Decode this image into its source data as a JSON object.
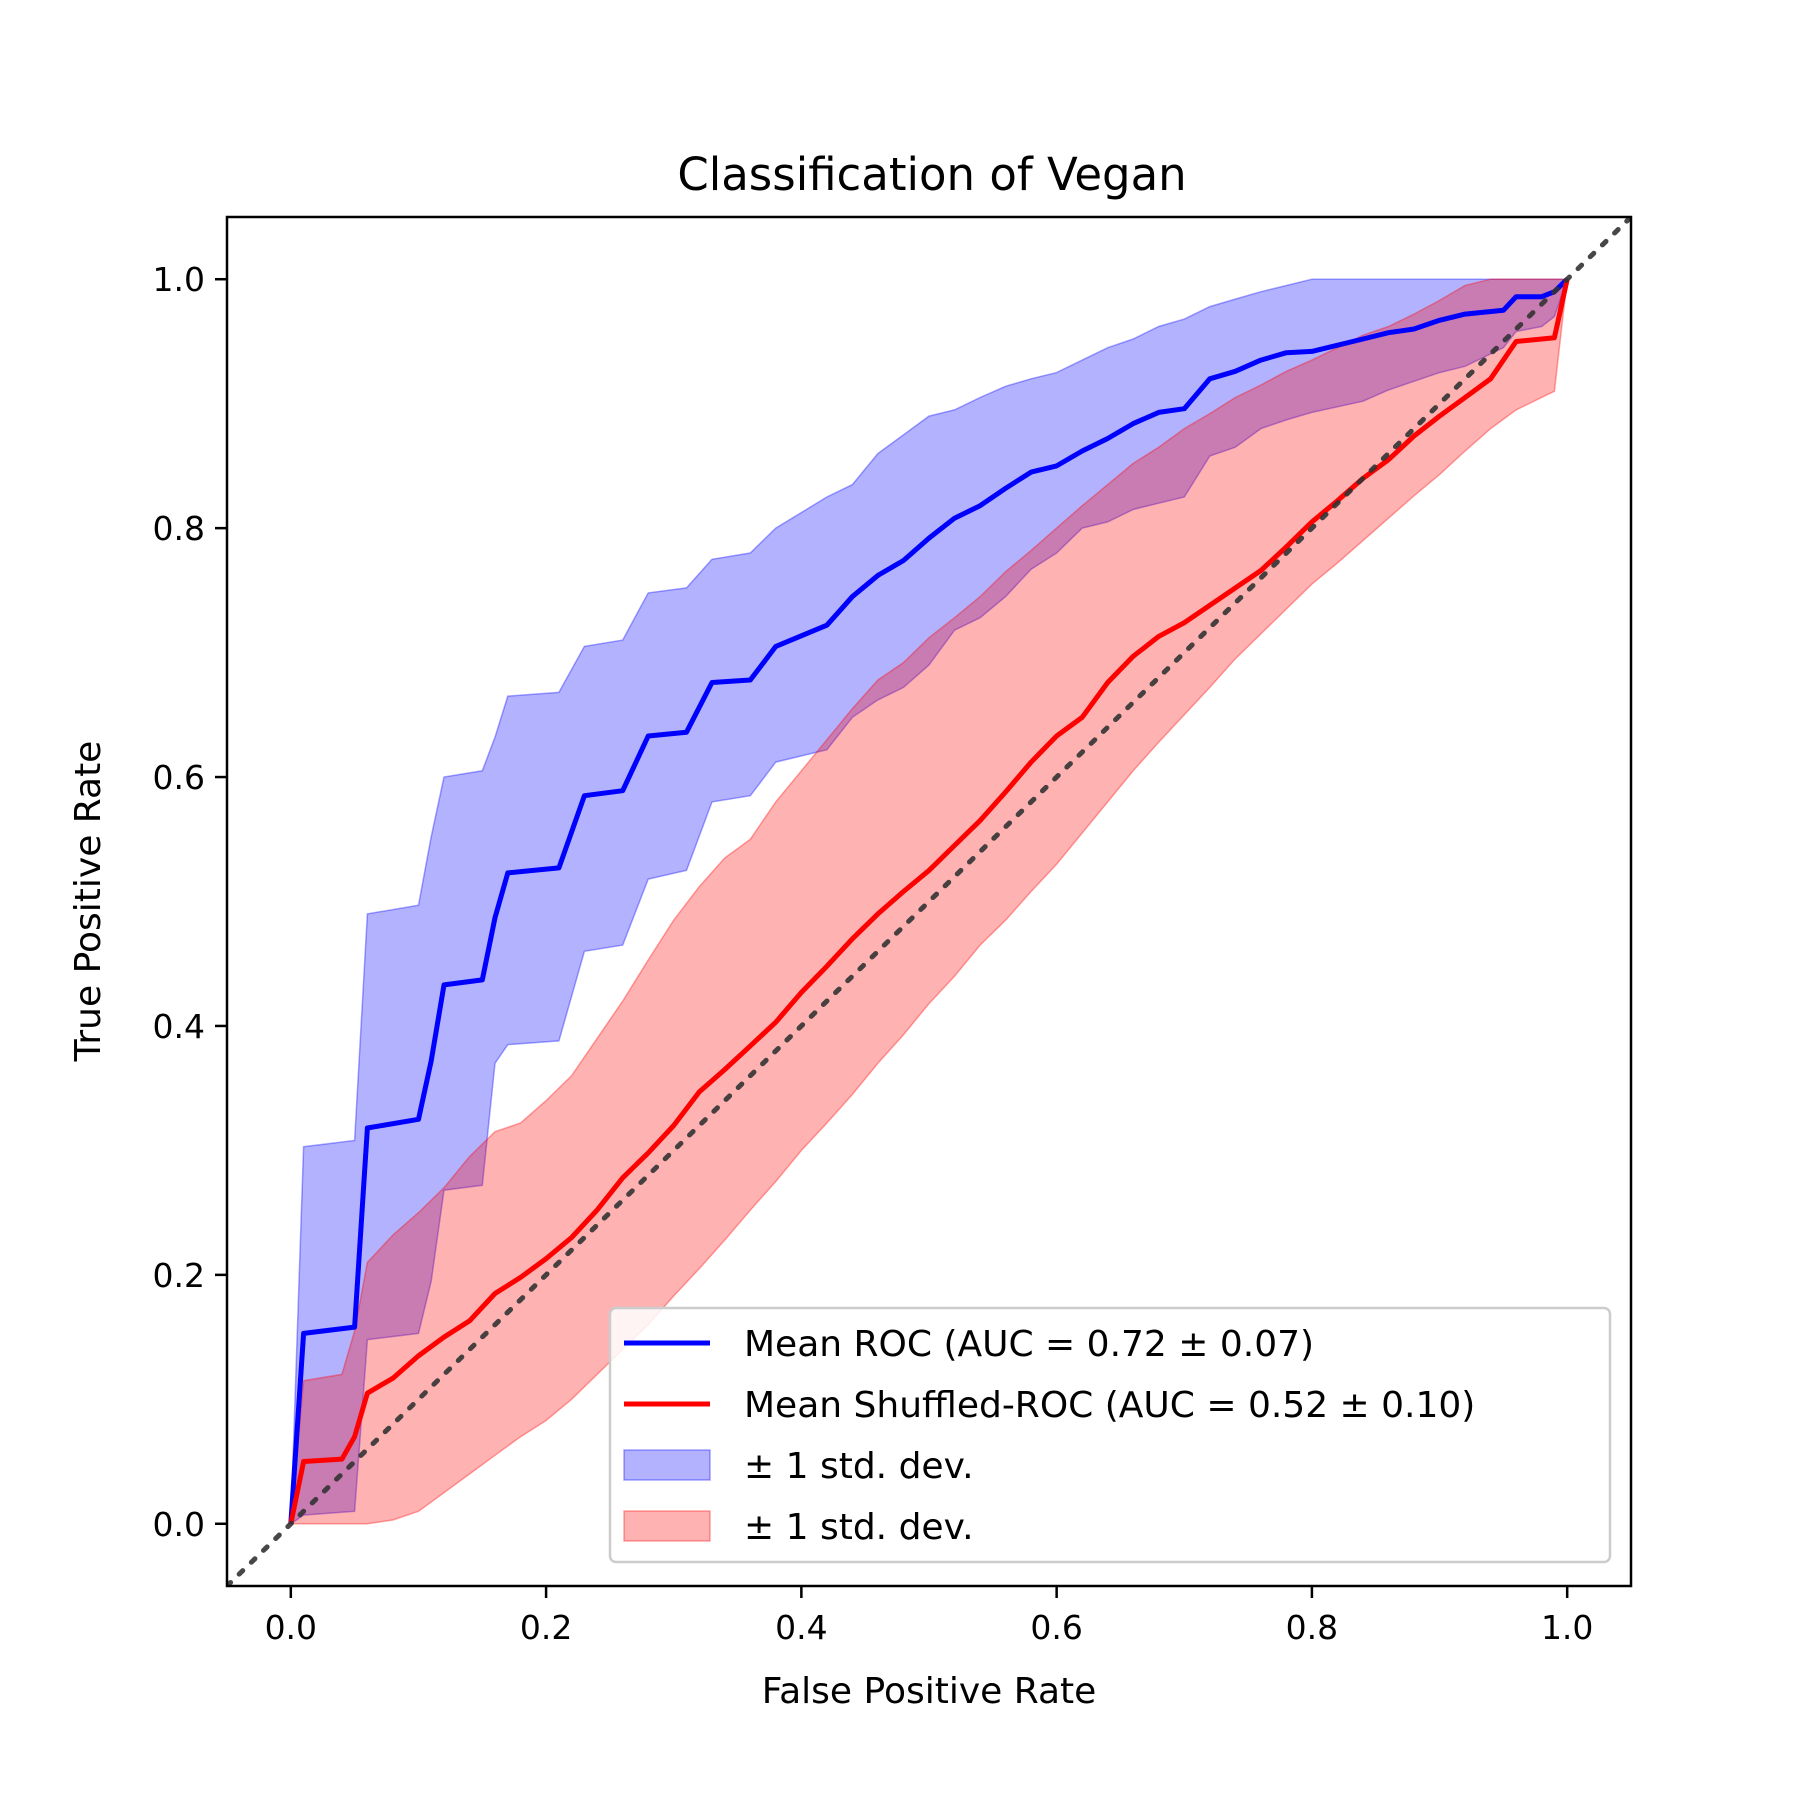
{
  "chart_data": {
    "type": "line",
    "title": "Classification of Vegan",
    "xlabel": "False Positive Rate",
    "ylabel": "True Positive Rate",
    "xlim": [
      -0.05,
      1.05
    ],
    "ylim": [
      -0.05,
      1.05
    ],
    "grid": false,
    "legend_position": "lower-right",
    "xticks": [
      "0.0",
      "0.2",
      "0.4",
      "0.6",
      "0.8",
      "1.0"
    ],
    "yticks": [
      "0.0",
      "0.2",
      "0.4",
      "0.6",
      "0.8",
      "1.0"
    ],
    "series": [
      {
        "name": "Mean ROC (AUC = 0.72 ± 0.07)",
        "color": "#0000ff",
        "x": [
          0.0,
          0.01,
          0.05,
          0.06,
          0.1,
          0.11,
          0.12,
          0.15,
          0.16,
          0.17,
          0.21,
          0.23,
          0.26,
          0.28,
          0.31,
          0.33,
          0.36,
          0.38,
          0.42,
          0.44,
          0.46,
          0.48,
          0.5,
          0.52,
          0.54,
          0.56,
          0.58,
          0.6,
          0.62,
          0.64,
          0.66,
          0.68,
          0.7,
          0.72,
          0.74,
          0.76,
          0.78,
          0.8,
          0.84,
          0.86,
          0.88,
          0.9,
          0.92,
          0.95,
          0.96,
          0.98,
          0.99,
          1.0
        ],
        "y": [
          0.0,
          0.153,
          0.158,
          0.318,
          0.325,
          0.372,
          0.433,
          0.437,
          0.487,
          0.523,
          0.527,
          0.585,
          0.589,
          0.633,
          0.636,
          0.676,
          0.678,
          0.705,
          0.722,
          0.745,
          0.762,
          0.774,
          0.792,
          0.808,
          0.818,
          0.832,
          0.845,
          0.85,
          0.862,
          0.872,
          0.884,
          0.893,
          0.896,
          0.92,
          0.926,
          0.935,
          0.941,
          0.942,
          0.952,
          0.957,
          0.96,
          0.967,
          0.972,
          0.975,
          0.986,
          0.986,
          0.99,
          1.0
        ],
        "y_upper": [
          0.0,
          0.303,
          0.308,
          0.49,
          0.497,
          0.552,
          0.6,
          0.605,
          0.632,
          0.665,
          0.668,
          0.705,
          0.71,
          0.748,
          0.752,
          0.775,
          0.78,
          0.8,
          0.825,
          0.835,
          0.86,
          0.875,
          0.89,
          0.895,
          0.905,
          0.914,
          0.92,
          0.925,
          0.935,
          0.945,
          0.952,
          0.962,
          0.968,
          0.978,
          0.984,
          0.99,
          0.995,
          1.0,
          1.0,
          1.0,
          1.0,
          1.0,
          1.0,
          1.0,
          1.0,
          1.0,
          1.0,
          1.0
        ],
        "y_lower": [
          0.0,
          0.007,
          0.01,
          0.148,
          0.153,
          0.195,
          0.268,
          0.272,
          0.37,
          0.385,
          0.388,
          0.46,
          0.465,
          0.518,
          0.525,
          0.58,
          0.585,
          0.612,
          0.622,
          0.648,
          0.662,
          0.672,
          0.69,
          0.718,
          0.728,
          0.745,
          0.767,
          0.78,
          0.8,
          0.805,
          0.815,
          0.82,
          0.825,
          0.858,
          0.865,
          0.88,
          0.887,
          0.893,
          0.902,
          0.911,
          0.918,
          0.925,
          0.93,
          0.945,
          0.958,
          0.962,
          0.97,
          1.0
        ]
      },
      {
        "name": "Mean Shuffled-ROC (AUC = 0.52 ± 0.10)",
        "color": "#ff0000",
        "x": [
          0.0,
          0.01,
          0.04,
          0.05,
          0.06,
          0.08,
          0.1,
          0.12,
          0.14,
          0.16,
          0.18,
          0.2,
          0.22,
          0.24,
          0.26,
          0.28,
          0.3,
          0.32,
          0.34,
          0.36,
          0.38,
          0.4,
          0.42,
          0.44,
          0.46,
          0.48,
          0.5,
          0.52,
          0.54,
          0.56,
          0.58,
          0.6,
          0.62,
          0.64,
          0.66,
          0.68,
          0.7,
          0.72,
          0.74,
          0.76,
          0.78,
          0.8,
          0.82,
          0.84,
          0.86,
          0.88,
          0.9,
          0.92,
          0.94,
          0.96,
          0.99,
          1.0
        ],
        "y": [
          0.0,
          0.05,
          0.052,
          0.07,
          0.105,
          0.117,
          0.135,
          0.15,
          0.163,
          0.185,
          0.198,
          0.213,
          0.23,
          0.252,
          0.278,
          0.298,
          0.32,
          0.347,
          0.365,
          0.384,
          0.403,
          0.427,
          0.448,
          0.47,
          0.49,
          0.508,
          0.525,
          0.545,
          0.565,
          0.588,
          0.612,
          0.633,
          0.648,
          0.676,
          0.697,
          0.713,
          0.724,
          0.738,
          0.752,
          0.766,
          0.785,
          0.805,
          0.822,
          0.84,
          0.855,
          0.874,
          0.89,
          0.905,
          0.92,
          0.95,
          0.953,
          1.0
        ],
        "y_upper": [
          0.0,
          0.115,
          0.12,
          0.155,
          0.21,
          0.232,
          0.25,
          0.27,
          0.295,
          0.315,
          0.322,
          0.34,
          0.36,
          0.39,
          0.42,
          0.453,
          0.485,
          0.512,
          0.535,
          0.55,
          0.58,
          0.605,
          0.63,
          0.655,
          0.678,
          0.692,
          0.712,
          0.728,
          0.745,
          0.765,
          0.782,
          0.8,
          0.818,
          0.835,
          0.852,
          0.865,
          0.88,
          0.892,
          0.905,
          0.915,
          0.926,
          0.935,
          0.945,
          0.955,
          0.962,
          0.972,
          0.983,
          0.995,
          1.0,
          1.0,
          1.0,
          1.0
        ],
        "y_lower": [
          0.0,
          0.0,
          0.0,
          0.0,
          0.0,
          0.003,
          0.01,
          0.025,
          0.04,
          0.055,
          0.07,
          0.083,
          0.1,
          0.12,
          0.14,
          0.16,
          0.183,
          0.205,
          0.228,
          0.252,
          0.275,
          0.3,
          0.322,
          0.345,
          0.37,
          0.393,
          0.418,
          0.44,
          0.465,
          0.485,
          0.508,
          0.53,
          0.555,
          0.58,
          0.605,
          0.628,
          0.65,
          0.672,
          0.695,
          0.715,
          0.735,
          0.755,
          0.772,
          0.79,
          0.808,
          0.826,
          0.843,
          0.862,
          0.88,
          0.895,
          0.91,
          1.0
        ]
      },
      {
        "name": "chance",
        "color": "#333333",
        "style": "dotted",
        "x": [
          -0.05,
          1.05
        ],
        "y": [
          -0.05,
          1.05
        ]
      }
    ],
    "legend": [
      {
        "label": "Mean ROC (AUC = 0.72 ± 0.07)",
        "kind": "line",
        "color": "#0000ff"
      },
      {
        "label": "Mean Shuffled-ROC (AUC = 0.52 ± 0.10)",
        "kind": "line",
        "color": "#ff0000"
      },
      {
        "label": "± 1 std. dev.",
        "kind": "patch",
        "color": "#0000ff"
      },
      {
        "label": "± 1 std. dev.",
        "kind": "patch",
        "color": "#ff0000"
      }
    ]
  }
}
